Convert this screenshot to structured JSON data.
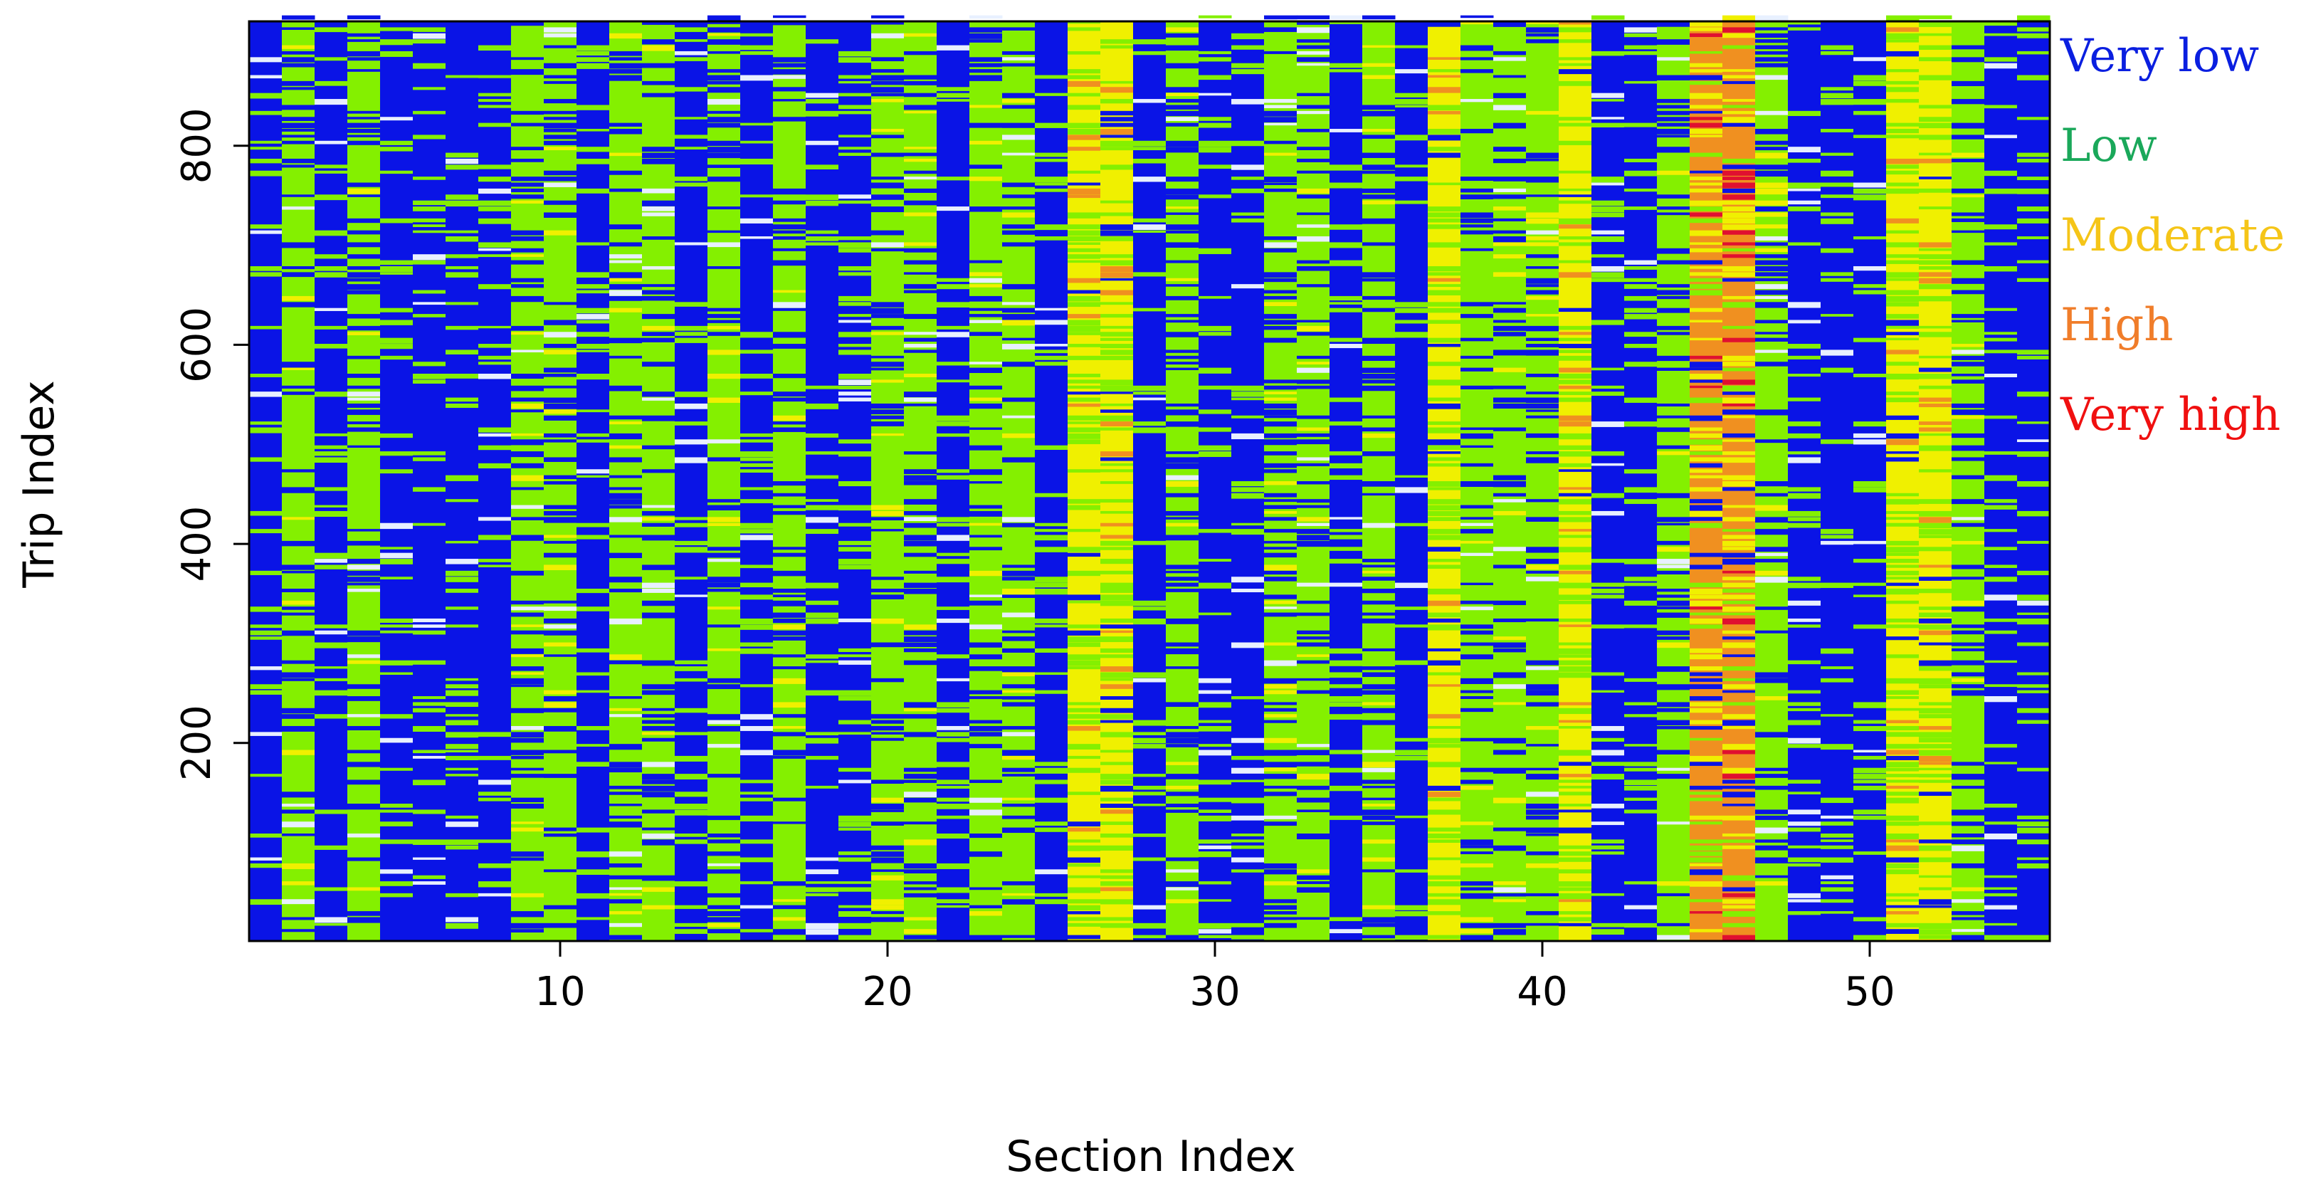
{
  "chart_data": {
    "type": "heatmap",
    "title": "",
    "xlabel": "Section Index",
    "ylabel": "Trip Index",
    "xlim": [
      0.5,
      55.5
    ],
    "ylim": [
      1,
      925
    ],
    "x_ticks": [
      10,
      20,
      30,
      40,
      50
    ],
    "y_ticks": [
      200,
      400,
      600,
      800
    ],
    "grid": false,
    "n_sections": 55,
    "n_trips": 925,
    "legend_position": "right",
    "legend": [
      {
        "label": "Very low",
        "color": "#0a1fe0"
      },
      {
        "label": "Low",
        "color": "#1aa85a"
      },
      {
        "label": "Moderate",
        "color": "#f5c518"
      },
      {
        "label": "High",
        "color": "#f07d2a"
      },
      {
        "label": "Very high",
        "color": "#f01010"
      }
    ],
    "cell_colors": {
      "very_low": "#0a14e6",
      "low": "#84f000",
      "moderate": "#f0f000",
      "high": "#f09020",
      "very_high": "#e01030",
      "gap": "#e8f0ff"
    },
    "section_level_profile": [
      [
        1,
        "very_low"
      ],
      [
        2,
        "low"
      ],
      [
        3,
        "very_low"
      ],
      [
        4,
        "low"
      ],
      [
        5,
        "very_low"
      ],
      [
        6,
        "very_low"
      ],
      [
        7,
        "very_low"
      ],
      [
        8,
        "very_low"
      ],
      [
        9,
        "low"
      ],
      [
        10,
        "low"
      ],
      [
        11,
        "very_low"
      ],
      [
        12,
        "low"
      ],
      [
        13,
        "low"
      ],
      [
        14,
        "very_low"
      ],
      [
        15,
        "low"
      ],
      [
        16,
        "very_low"
      ],
      [
        17,
        "low"
      ],
      [
        18,
        "very_low"
      ],
      [
        19,
        "very_low"
      ],
      [
        20,
        "low"
      ],
      [
        21,
        "low"
      ],
      [
        22,
        "very_low"
      ],
      [
        23,
        "low"
      ],
      [
        24,
        "low"
      ],
      [
        25,
        "very_low"
      ],
      [
        26,
        "moderate"
      ],
      [
        27,
        "moderate"
      ],
      [
        28,
        "very_low"
      ],
      [
        29,
        "low"
      ],
      [
        30,
        "very_low"
      ],
      [
        31,
        "very_low"
      ],
      [
        32,
        "low"
      ],
      [
        33,
        "low"
      ],
      [
        34,
        "very_low"
      ],
      [
        35,
        "low"
      ],
      [
        36,
        "very_low"
      ],
      [
        37,
        "moderate"
      ],
      [
        38,
        "low"
      ],
      [
        39,
        "low"
      ],
      [
        40,
        "low"
      ],
      [
        41,
        "moderate"
      ],
      [
        42,
        "very_low"
      ],
      [
        43,
        "very_low"
      ],
      [
        44,
        "low"
      ],
      [
        45,
        "high"
      ],
      [
        46,
        "high"
      ],
      [
        47,
        "low"
      ],
      [
        48,
        "very_low"
      ],
      [
        49,
        "very_low"
      ],
      [
        50,
        "very_low"
      ],
      [
        51,
        "moderate"
      ],
      [
        52,
        "moderate"
      ],
      [
        53,
        "low"
      ],
      [
        54,
        "very_low"
      ],
      [
        55,
        "very_low"
      ]
    ]
  }
}
